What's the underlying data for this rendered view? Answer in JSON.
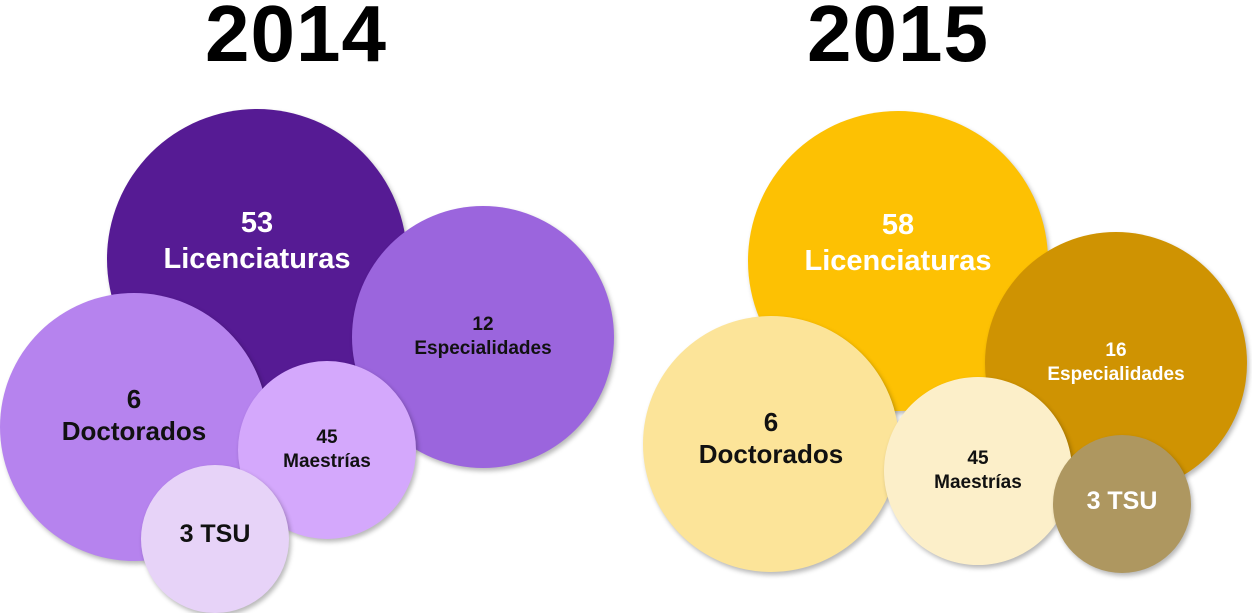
{
  "panels": [
    {
      "year": "2014",
      "bubbles": [
        {
          "id": "licenciaturas",
          "count": "53",
          "label": "Licenciaturas",
          "color": "#561b94",
          "text_color": "#ffffff"
        },
        {
          "id": "especialidades",
          "count": "12",
          "label": "Especialidades",
          "color": "#9b65dd",
          "text_color": "#111111"
        },
        {
          "id": "doctorados",
          "count": "6",
          "label": "Doctorados",
          "color": "#b683ee",
          "text_color": "#111111"
        },
        {
          "id": "maestrias",
          "count": "45",
          "label": "Maestrías",
          "color": "#d4a8fc",
          "text_color": "#111111"
        },
        {
          "id": "tsu",
          "label": "3 TSU",
          "color": "#e7d3f8",
          "text_color": "#111111"
        }
      ]
    },
    {
      "year": "2015",
      "bubbles": [
        {
          "id": "licenciaturas",
          "count": "58",
          "label": "Licenciaturas",
          "color": "#fdc103",
          "text_color": "#ffffff"
        },
        {
          "id": "especialidades",
          "count": "16",
          "label": "Especialidades",
          "color": "#cf9302",
          "text_color": "#ffffff"
        },
        {
          "id": "doctorados",
          "count": "6",
          "label": "Doctorados",
          "color": "#fce499",
          "text_color": "#111111"
        },
        {
          "id": "maestrias",
          "count": "45",
          "label": "Maestrías",
          "color": "#fcefc9",
          "text_color": "#111111"
        },
        {
          "id": "tsu",
          "label": "3 TSU",
          "color": "#ae9760",
          "text_color": "#ffffff"
        }
      ]
    }
  ]
}
